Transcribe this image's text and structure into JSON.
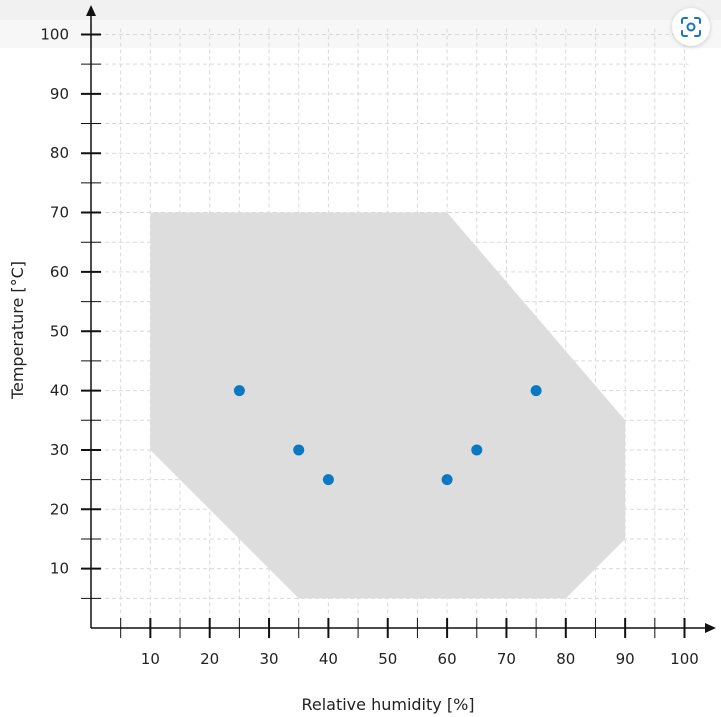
{
  "chart_data": {
    "type": "scatter",
    "xlabel": "Relative humidity [%]",
    "ylabel": "Temperature [°C]",
    "xlim": [
      0,
      100
    ],
    "ylim": [
      0,
      100
    ],
    "x_ticks_labeled": [
      10,
      20,
      30,
      40,
      50,
      60,
      70,
      80,
      90,
      100
    ],
    "y_ticks_labeled": [
      10,
      20,
      30,
      40,
      50,
      60,
      70,
      80,
      90,
      100
    ],
    "minor_tick_step": 5,
    "grid": true,
    "operating_region": [
      [
        10,
        70
      ],
      [
        60,
        70
      ],
      [
        90,
        35
      ],
      [
        90,
        15
      ],
      [
        80,
        5
      ],
      [
        35,
        5
      ],
      [
        10,
        30
      ]
    ],
    "points": [
      {
        "x": 25,
        "y": 40
      },
      {
        "x": 35,
        "y": 30
      },
      {
        "x": 40,
        "y": 25
      },
      {
        "x": 60,
        "y": 25
      },
      {
        "x": 65,
        "y": 30
      },
      {
        "x": 75,
        "y": 40
      }
    ],
    "colors": {
      "points": "#0a78c2",
      "region": "#dddddd",
      "axis": "#111111",
      "grid": "#d9d9d9"
    }
  },
  "toolbar": {
    "focus_icon": "focus-icon"
  }
}
